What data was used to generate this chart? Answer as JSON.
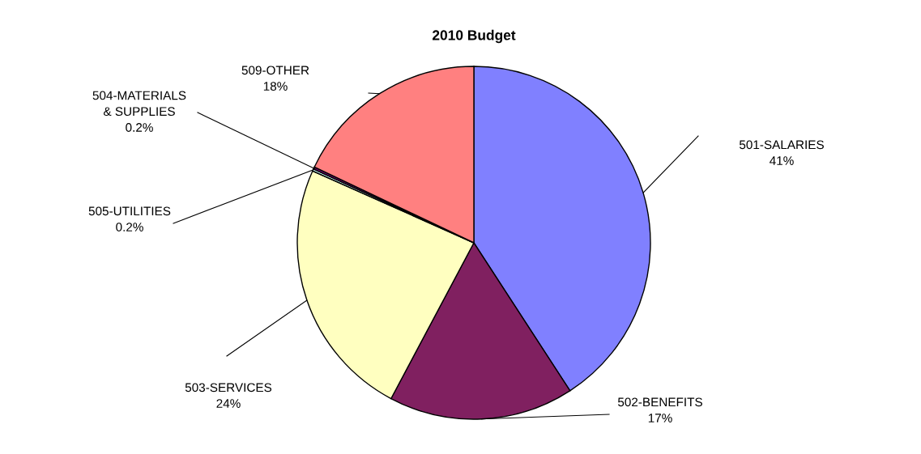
{
  "chart_data": {
    "type": "pie",
    "title": "2010 Budget",
    "categories": [
      "501-SALARIES",
      "502-BENEFITS",
      "503-SERVICES",
      "505-UTILITIES",
      "504-MATERIALS\n& SUPPLIES",
      "509-OTHER"
    ],
    "values": [
      41,
      17,
      24,
      0.2,
      0.2,
      18
    ],
    "value_labels": [
      "41%",
      "17%",
      "24%",
      "0.2%",
      "0.2%",
      "18%"
    ],
    "colors": [
      "#8080ff",
      "#802060",
      "#ffffc0",
      "#ccffff",
      "#660066",
      "#ff8080"
    ]
  }
}
